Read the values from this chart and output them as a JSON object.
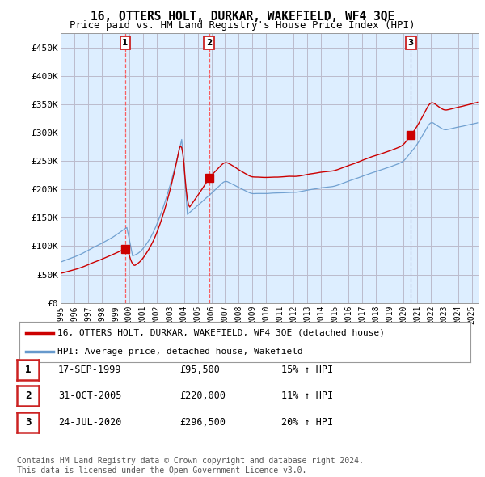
{
  "title": "16, OTTERS HOLT, DURKAR, WAKEFIELD, WF4 3QE",
  "subtitle": "Price paid vs. HM Land Registry's House Price Index (HPI)",
  "ylabel_ticks": [
    "£0",
    "£50K",
    "£100K",
    "£150K",
    "£200K",
    "£250K",
    "£300K",
    "£350K",
    "£400K",
    "£450K"
  ],
  "ytick_values": [
    0,
    50000,
    100000,
    150000,
    200000,
    250000,
    300000,
    350000,
    400000,
    450000
  ],
  "xlim_start": 1995.0,
  "xlim_end": 2025.5,
  "ylim": [
    0,
    475000
  ],
  "background_color": "#ffffff",
  "chart_fill_color": "#ddeeff",
  "grid_color": "#bbbbcc",
  "sale_dates": [
    1999.71,
    2005.83,
    2020.56
  ],
  "sale_prices": [
    95500,
    220000,
    296500
  ],
  "sale_labels": [
    "1",
    "2",
    "3"
  ],
  "sale_vline_colors": [
    "#ff4444",
    "#ff4444",
    "#aaaacc"
  ],
  "sale_vline_styles": [
    "dashed",
    "dashed",
    "dashed"
  ],
  "sale_marker_color": "#cc0000",
  "hpi_line_color": "#6699cc",
  "price_line_color": "#cc0000",
  "legend_entries": [
    "16, OTTERS HOLT, DURKAR, WAKEFIELD, WF4 3QE (detached house)",
    "HPI: Average price, detached house, Wakefield"
  ],
  "table_rows": [
    [
      "1",
      "17-SEP-1999",
      "£95,500",
      "15% ↑ HPI"
    ],
    [
      "2",
      "31-OCT-2005",
      "£220,000",
      "11% ↑ HPI"
    ],
    [
      "3",
      "24-JUL-2020",
      "£296,500",
      "20% ↑ HPI"
    ]
  ],
  "footer": "Contains HM Land Registry data © Crown copyright and database right 2024.\nThis data is licensed under the Open Government Licence v3.0.",
  "title_fontsize": 10.5,
  "subtitle_fontsize": 9,
  "tick_fontsize": 8,
  "legend_fontsize": 8,
  "table_fontsize": 8.5,
  "footer_fontsize": 7
}
